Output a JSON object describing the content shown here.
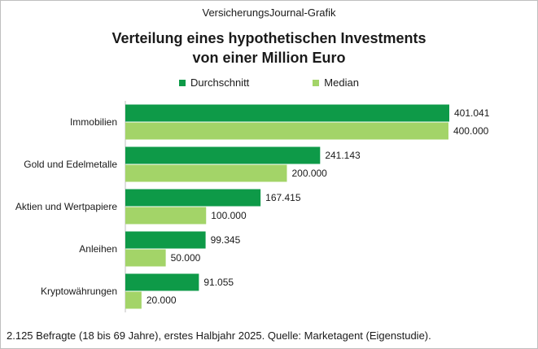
{
  "header": "VersicherungsJournal-Grafik",
  "footer": "2.125 Befragte (18 bis 69 Jahre), erstes Halbjahr 2025. Quelle: Marketagent (Eigenstudie).",
  "colors": {
    "durchschnitt": "#0e9a48",
    "median": "#a3d468"
  },
  "chart_data": {
    "type": "bar",
    "orientation": "horizontal",
    "title_line1": "Verteilung eines hypothetischen Investments",
    "title_line2": "von einer Million Euro",
    "categories": [
      "Immobilien",
      "Gold und Edelmetalle",
      "Aktien und Wertpapiere",
      "Anleihen",
      "Kryptowährungen"
    ],
    "series": [
      {
        "name": "Durchschnitt",
        "values": [
          401041,
          241143,
          167415,
          99345,
          91055
        ],
        "labels": [
          "401.041",
          "241.143",
          "167.415",
          "99.345",
          "91.055"
        ]
      },
      {
        "name": "Median",
        "values": [
          400000,
          200000,
          100000,
          50000,
          20000
        ],
        "labels": [
          "400.000",
          "200.000",
          "100.000",
          "50.000",
          "20.000"
        ]
      }
    ],
    "xlim": [
      0,
      401041
    ],
    "legend_position": "top-center",
    "grid": false
  }
}
